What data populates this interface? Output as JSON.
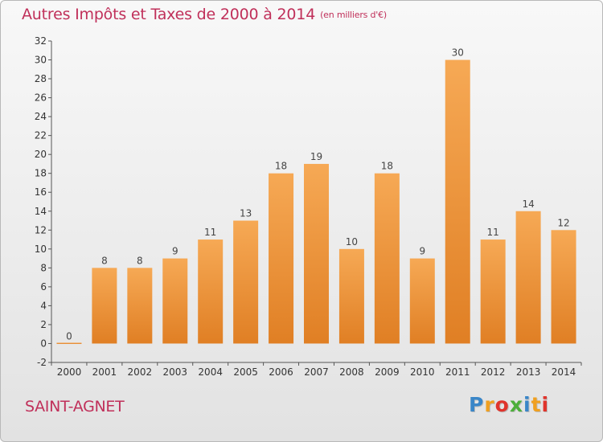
{
  "header": {
    "title": "Autres Impôts et Taxes de 2000 à 2014",
    "unit": "(en milliers d'€)"
  },
  "footer": {
    "commune": "SAINT-AGNET",
    "logo_letters": [
      {
        "ch": "P",
        "color": "#3a86c8"
      },
      {
        "ch": "r",
        "color": "#f0a020"
      },
      {
        "ch": "o",
        "color": "#e0342c"
      },
      {
        "ch": "x",
        "color": "#4caf3a"
      },
      {
        "ch": "i",
        "color": "#3a86c8"
      },
      {
        "ch": "t",
        "color": "#f0a020"
      },
      {
        "ch": "i",
        "color": "#e0342c"
      }
    ]
  },
  "chart_data": {
    "type": "bar",
    "title": "Autres Impôts et Taxes de 2000 à 2014",
    "subtitle": "(en milliers d'€)",
    "categories": [
      "2000",
      "2001",
      "2002",
      "2003",
      "2004",
      "2005",
      "2006",
      "2007",
      "2008",
      "2009",
      "2010",
      "2011",
      "2012",
      "2013",
      "2014"
    ],
    "values": [
      0,
      8,
      8,
      9,
      11,
      13,
      18,
      19,
      10,
      18,
      9,
      30,
      11,
      14,
      12
    ],
    "ylim": [
      -2,
      32
    ],
    "yticks": [
      -2,
      0,
      2,
      4,
      6,
      8,
      10,
      12,
      14,
      16,
      18,
      20,
      22,
      24,
      26,
      28,
      30,
      32
    ],
    "grid": false,
    "colors": {
      "bar_light": "#f6a955",
      "bar_dark": "#e07f24",
      "axis": "#555555"
    }
  }
}
